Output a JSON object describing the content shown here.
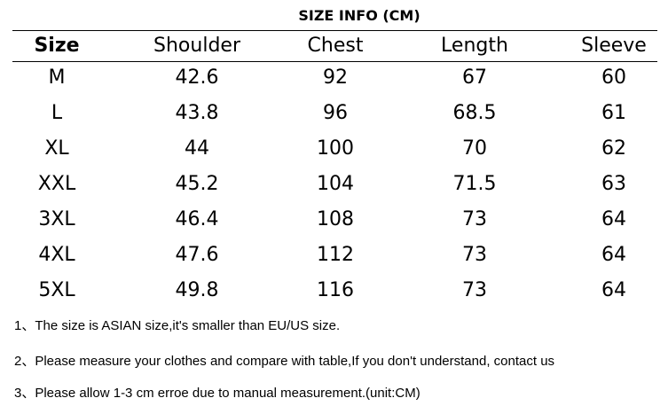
{
  "title": "SIZE INFO (CM)",
  "table": {
    "header": [
      "Size",
      "Shoulder",
      "Chest",
      "Length",
      "Sleeve"
    ],
    "rows": [
      [
        "M",
        "42.6",
        "92",
        "67",
        "60"
      ],
      [
        "L",
        "43.8",
        "96",
        "68.5",
        "61"
      ],
      [
        "XL",
        "44",
        "100",
        "70",
        "62"
      ],
      [
        "XXL",
        "45.2",
        "104",
        "71.5",
        "63"
      ],
      [
        "3XL",
        "46.4",
        "108",
        "73",
        "64"
      ],
      [
        "4XL",
        "47.6",
        "112",
        "73",
        "64"
      ],
      [
        "5XL",
        "49.8",
        "116",
        "73",
        "64"
      ]
    ]
  },
  "notes": [
    "1、The size is ASIAN size,it's smaller than EU/US size.",
    "2、Please measure your clothes and compare with table,If you don't understand, contact us",
    "3、Please allow 1-3 cm erroe due to manual measurement.(unit:CM)"
  ]
}
